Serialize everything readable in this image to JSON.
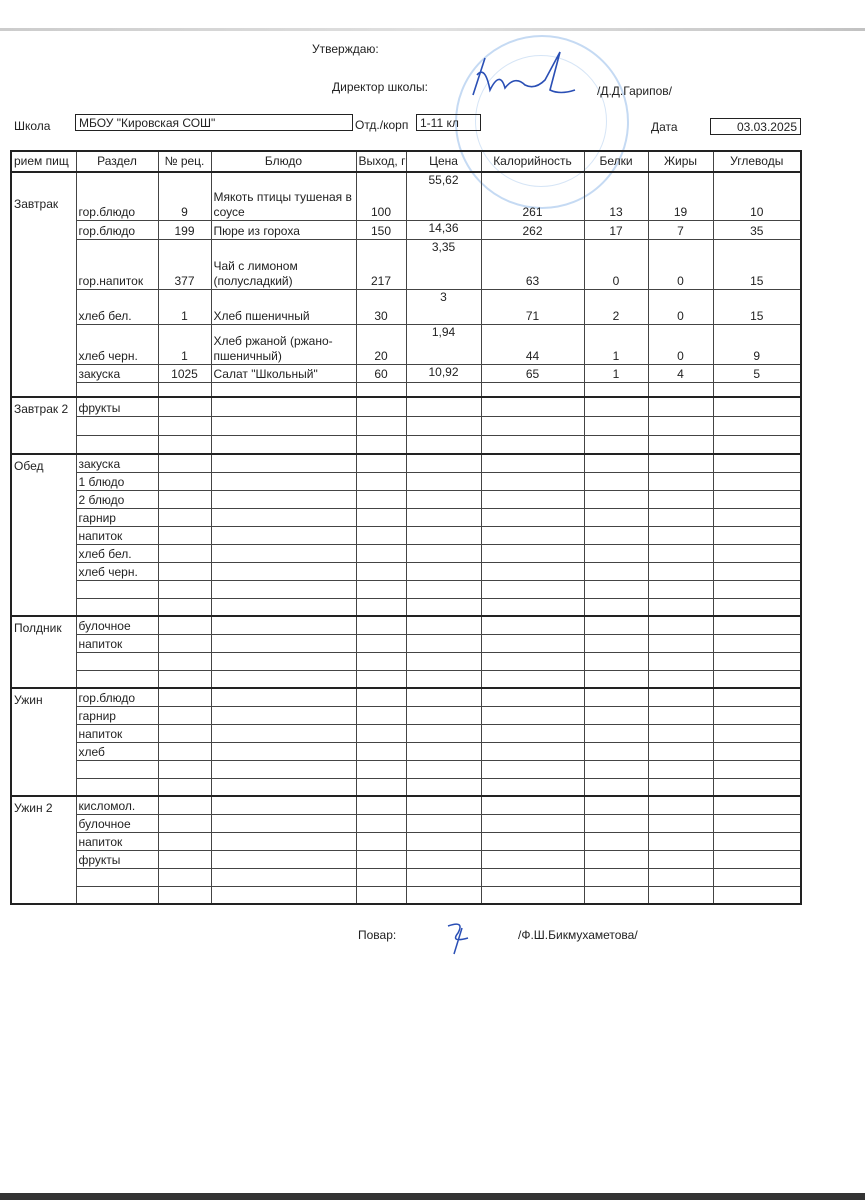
{
  "header": {
    "approve": "Утверждаю:",
    "director_label": "Директор школы:",
    "director_name": "/Д.Д.Гарипов/",
    "school_label": "Школа",
    "school_value": "МБОУ \"Кировская СОШ\"",
    "dept_label": "Отд./корп",
    "dept_value": "1-11 кл",
    "date_label": "Дата",
    "date_value": "03.03.2025"
  },
  "table": {
    "columns": [
      "рием пищ",
      "Раздел",
      "№ рец.",
      "Блюдо",
      "Выход, г",
      "Цена",
      "Калорийность",
      "Белки",
      "Жиры",
      "Углеводы"
    ],
    "sections": [
      {
        "meal": "Завтрак",
        "rows": [
          {
            "h": 48,
            "cells": [
              "гор.блюдо",
              "9",
              "Мякоть птицы тушеная в соусе",
              "100",
              "55,62",
              "261",
              "13",
              "19",
              "10"
            ]
          },
          {
            "h": 19,
            "cells": [
              "гор.блюдо",
              "199",
              "Пюре из гороха",
              "150",
              "14,36",
              "262",
              "17",
              "7",
              "35"
            ]
          },
          {
            "h": 50,
            "cells": [
              "гор.напиток",
              "377",
              "Чай с лимоном (полусладкий)",
              "217",
              "3,35",
              "63",
              "0",
              "0",
              "15"
            ]
          },
          {
            "h": 35,
            "cells": [
              "хлеб бел.",
              "1",
              "Хлеб пшеничный",
              "30",
              "3",
              "71",
              "2",
              "0",
              "15"
            ]
          },
          {
            "h": 40,
            "cells": [
              "хлеб черн.",
              "1",
              "Хлеб ржаной (ржано-пшеничный)",
              "20",
              "1,94",
              "44",
              "1",
              "0",
              "9"
            ]
          },
          {
            "h": 18,
            "cells": [
              "закуска",
              "1025",
              "Салат \"Школьный\"",
              "60",
              "10,92",
              "65",
              "1",
              "4",
              "5"
            ]
          },
          {
            "h": 15,
            "cells": [
              "",
              "",
              "",
              "",
              "",
              "",
              "",
              "",
              ""
            ]
          }
        ]
      },
      {
        "meal": "Завтрак 2",
        "rows": [
          {
            "h": 19,
            "cells": [
              "фрукты",
              "",
              "",
              "",
              "",
              "",
              "",
              "",
              ""
            ]
          },
          {
            "h": 19,
            "cells": [
              "",
              "",
              "",
              "",
              "",
              "",
              "",
              "",
              ""
            ]
          },
          {
            "h": 19,
            "cells": [
              "",
              "",
              "",
              "",
              "",
              "",
              "",
              "",
              ""
            ]
          }
        ]
      },
      {
        "meal": "Обед",
        "rows": [
          {
            "h": 18,
            "cells": [
              "закуска",
              "",
              "",
              "",
              "",
              "",
              "",
              "",
              ""
            ]
          },
          {
            "h": 18,
            "cells": [
              "1 блюдо",
              "",
              "",
              "",
              "",
              "",
              "",
              "",
              ""
            ]
          },
          {
            "h": 18,
            "cells": [
              "2 блюдо",
              "",
              "",
              "",
              "",
              "",
              "",
              "",
              ""
            ]
          },
          {
            "h": 18,
            "cells": [
              "гарнир",
              "",
              "",
              "",
              "",
              "",
              "",
              "",
              ""
            ]
          },
          {
            "h": 18,
            "cells": [
              "напиток",
              "",
              "",
              "",
              "",
              "",
              "",
              "",
              ""
            ]
          },
          {
            "h": 18,
            "cells": [
              "хлеб бел.",
              "",
              "",
              "",
              "",
              "",
              "",
              "",
              ""
            ]
          },
          {
            "h": 18,
            "cells": [
              "хлеб черн.",
              "",
              "",
              "",
              "",
              "",
              "",
              "",
              ""
            ]
          },
          {
            "h": 18,
            "cells": [
              "",
              "",
              "",
              "",
              "",
              "",
              "",
              "",
              ""
            ]
          },
          {
            "h": 18,
            "cells": [
              "",
              "",
              "",
              "",
              "",
              "",
              "",
              "",
              ""
            ]
          }
        ]
      },
      {
        "meal": "Полдник",
        "rows": [
          {
            "h": 18,
            "cells": [
              "булочное",
              "",
              "",
              "",
              "",
              "",
              "",
              "",
              ""
            ]
          },
          {
            "h": 18,
            "cells": [
              "напиток",
              "",
              "",
              "",
              "",
              "",
              "",
              "",
              ""
            ]
          },
          {
            "h": 18,
            "cells": [
              "",
              "",
              "",
              "",
              "",
              "",
              "",
              "",
              ""
            ]
          },
          {
            "h": 18,
            "cells": [
              "",
              "",
              "",
              "",
              "",
              "",
              "",
              "",
              ""
            ]
          }
        ]
      },
      {
        "meal": "Ужин",
        "rows": [
          {
            "h": 18,
            "cells": [
              "гор.блюдо",
              "",
              "",
              "",
              "",
              "",
              "",
              "",
              ""
            ]
          },
          {
            "h": 18,
            "cells": [
              "гарнир",
              "",
              "",
              "",
              "",
              "",
              "",
              "",
              ""
            ]
          },
          {
            "h": 18,
            "cells": [
              "напиток",
              "",
              "",
              "",
              "",
              "",
              "",
              "",
              ""
            ]
          },
          {
            "h": 18,
            "cells": [
              "хлеб",
              "",
              "",
              "",
              "",
              "",
              "",
              "",
              ""
            ]
          },
          {
            "h": 18,
            "cells": [
              "",
              "",
              "",
              "",
              "",
              "",
              "",
              "",
              ""
            ]
          },
          {
            "h": 18,
            "cells": [
              "",
              "",
              "",
              "",
              "",
              "",
              "",
              "",
              ""
            ]
          }
        ]
      },
      {
        "meal": "Ужин 2",
        "rows": [
          {
            "h": 18,
            "cells": [
              "кисломол.",
              "",
              "",
              "",
              "",
              "",
              "",
              "",
              ""
            ]
          },
          {
            "h": 18,
            "cells": [
              "булочное",
              "",
              "",
              "",
              "",
              "",
              "",
              "",
              ""
            ]
          },
          {
            "h": 18,
            "cells": [
              "напиток",
              "",
              "",
              "",
              "",
              "",
              "",
              "",
              ""
            ]
          },
          {
            "h": 18,
            "cells": [
              "фрукты",
              "",
              "",
              "",
              "",
              "",
              "",
              "",
              ""
            ]
          },
          {
            "h": 18,
            "cells": [
              "",
              "",
              "",
              "",
              "",
              "",
              "",
              "",
              ""
            ]
          },
          {
            "h": 18,
            "cells": [
              "",
              "",
              "",
              "",
              "",
              "",
              "",
              "",
              ""
            ]
          }
        ]
      }
    ]
  },
  "footer": {
    "cook_label": "Повар:",
    "cook_name": "/Ф.Ш.Бикмухаметова/"
  },
  "colors": {
    "stamp": "#5a96dc",
    "signature": "#2a4fb5"
  }
}
